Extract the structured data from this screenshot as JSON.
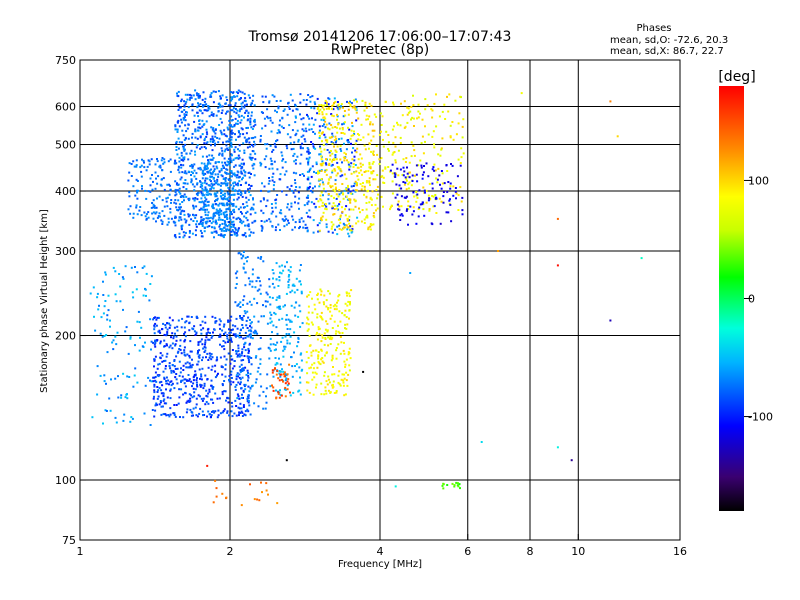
{
  "chart_data": {
    "type": "scatter",
    "title": "Tromsø 20141206 17:06:00–17:07:43",
    "subtitle": "RwPretec (8p)",
    "xlabel": "Frequency [MHz]",
    "ylabel": "Stationary phase Virtual Height [km]",
    "xscale": "log",
    "yscale": "log",
    "xlim": [
      1,
      16
    ],
    "ylim": [
      75,
      750
    ],
    "x_ticks": [
      1,
      2,
      4,
      6,
      8,
      10,
      16
    ],
    "x_tick_labels": [
      "1",
      "2",
      "4",
      "6",
      "8",
      "10",
      "16"
    ],
    "y_ticks": [
      75,
      100,
      200,
      300,
      400,
      500,
      600,
      750
    ],
    "y_tick_labels": [
      "75",
      "100",
      "200",
      "300",
      "400",
      "500",
      "600",
      "750"
    ],
    "x_grid": [
      2,
      4,
      6,
      8,
      10
    ],
    "y_grid": [
      100,
      200,
      300,
      400,
      500,
      600
    ],
    "stats": {
      "heading": "Phases",
      "o_line": "mean, sd,O: -72.6, 20.3",
      "x_line": "mean, sd,X:  86.7, 22.7"
    },
    "colorbar": {
      "label": "[deg]",
      "range": [
        -180,
        180
      ],
      "ticks": [
        100,
        0,
        -100
      ],
      "tick_labels": [
        "100",
        "0",
        "-100"
      ],
      "colormap": "rainbow"
    },
    "clusters": [
      {
        "x": [
          1.55,
          2.25
        ],
        "y": [
          320,
          650
        ],
        "phase": [
          -95,
          -60
        ],
        "n": 900
      },
      {
        "x": [
          1.25,
          1.6
        ],
        "y": [
          340,
          470
        ],
        "phase": [
          -85,
          -65
        ],
        "n": 160
      },
      {
        "x": [
          1.75,
          2.05
        ],
        "y": [
          330,
          460
        ],
        "phase": [
          -75,
          -60
        ],
        "n": 220
      },
      {
        "x": [
          2.3,
          2.9
        ],
        "y": [
          330,
          640
        ],
        "phase": [
          -95,
          -60
        ],
        "n": 260
      },
      {
        "x": [
          2.85,
          3.6
        ],
        "y": [
          320,
          640
        ],
        "phase": [
          -110,
          -50
        ],
        "n": 220
      },
      {
        "x": [
          3.0,
          3.9
        ],
        "y": [
          330,
          620
        ],
        "phase": [
          70,
          110
        ],
        "n": 380
      },
      {
        "x": [
          3.9,
          5.9
        ],
        "y": [
          360,
          640
        ],
        "phase": [
          65,
          105
        ],
        "n": 220
      },
      {
        "x": [
          4.2,
          5.9
        ],
        "y": [
          340,
          460
        ],
        "phase": [
          -125,
          -105
        ],
        "n": 110
      },
      {
        "x": [
          1.05,
          1.4
        ],
        "y": [
          130,
          280
        ],
        "phase": [
          -80,
          -45
        ],
        "n": 120
      },
      {
        "x": [
          1.4,
          2.2
        ],
        "y": [
          135,
          220
        ],
        "phase": [
          -105,
          -75
        ],
        "n": 650
      },
      {
        "x": [
          2.05,
          2.4
        ],
        "y": [
          140,
          300
        ],
        "phase": [
          -85,
          -60
        ],
        "n": 160
      },
      {
        "x": [
          2.4,
          2.8
        ],
        "y": [
          150,
          285
        ],
        "phase": [
          -70,
          -45
        ],
        "n": 170
      },
      {
        "x": [
          2.85,
          3.5
        ],
        "y": [
          150,
          250
        ],
        "phase": [
          70,
          100
        ],
        "n": 230
      },
      {
        "x": [
          2.4,
          2.65
        ],
        "y": [
          148,
          175
        ],
        "phase": [
          130,
          170
        ],
        "n": 35
      },
      {
        "x": [
          1.85,
          2.5
        ],
        "y": [
          88,
          100
        ],
        "phase": [
          120,
          150
        ],
        "n": 18
      },
      {
        "x": [
          5.3,
          5.8
        ],
        "y": [
          96,
          99
        ],
        "phase": [
          20,
          40
        ],
        "n": 14
      }
    ],
    "isolated_points": [
      {
        "x": 7.7,
        "y": 640,
        "phase": 80
      },
      {
        "x": 11.6,
        "y": 615,
        "phase": 130
      },
      {
        "x": 12.0,
        "y": 520,
        "phase": 100
      },
      {
        "x": 9.1,
        "y": 350,
        "phase": 140
      },
      {
        "x": 9.1,
        "y": 280,
        "phase": 175
      },
      {
        "x": 6.9,
        "y": 300,
        "phase": 120
      },
      {
        "x": 13.4,
        "y": 290,
        "phase": -20
      },
      {
        "x": 11.6,
        "y": 215,
        "phase": -130
      },
      {
        "x": 3.7,
        "y": 168,
        "phase": -180
      },
      {
        "x": 9.1,
        "y": 117,
        "phase": -30
      },
      {
        "x": 9.7,
        "y": 110,
        "phase": -140
      },
      {
        "x": 2.6,
        "y": 110,
        "phase": -180
      },
      {
        "x": 1.8,
        "y": 107,
        "phase": 170
      },
      {
        "x": 4.6,
        "y": 270,
        "phase": -60
      },
      {
        "x": 6.4,
        "y": 120,
        "phase": -40
      },
      {
        "x": 4.3,
        "y": 97,
        "phase": -30
      }
    ]
  }
}
